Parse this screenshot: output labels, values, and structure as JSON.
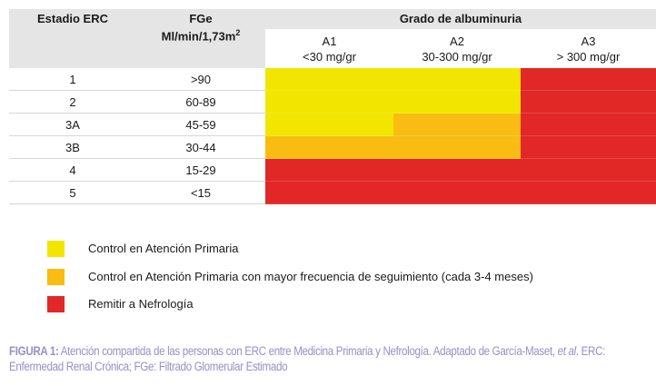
{
  "table": {
    "col_stage": "Estadio ERC",
    "col_fge": "FGe",
    "col_fge_unit": "Ml/min/1,73m",
    "col_fge_unit_sup": "2",
    "col_albuminuria": "Grado de albuminuria",
    "albuminuria_levels": [
      {
        "code": "A1",
        "range": "<30 mg/gr"
      },
      {
        "code": "A2",
        "range": "30-300 mg/gr"
      },
      {
        "code": "A3",
        "range": "> 300 mg/gr"
      }
    ],
    "rows": [
      {
        "stage": "1",
        "fge": ">90",
        "risk": [
          "yellow",
          "yellow",
          "red"
        ]
      },
      {
        "stage": "2",
        "fge": "60-89",
        "risk": [
          "yellow",
          "yellow",
          "red"
        ]
      },
      {
        "stage": "3A",
        "fge": "45-59",
        "risk": [
          "yellow",
          "orange",
          "red"
        ]
      },
      {
        "stage": "3B",
        "fge": "30-44",
        "risk": [
          "orange",
          "orange",
          "red"
        ]
      },
      {
        "stage": "4",
        "fge": "15-29",
        "risk": [
          "red",
          "red",
          "red"
        ]
      },
      {
        "stage": "5",
        "fge": "<15",
        "risk": [
          "red",
          "red",
          "red"
        ]
      }
    ]
  },
  "colors": {
    "yellow": "#f2e600",
    "orange": "#f8bc12",
    "red": "#e12826",
    "caption": "#9a8fc6"
  },
  "legend": [
    {
      "color": "yellow",
      "label": "Control en Atención Primaria"
    },
    {
      "color": "orange",
      "label": "Control en Atención Primaria con mayor frecuencia de seguimiento (cada 3-4 meses)"
    },
    {
      "color": "red",
      "label": "Remitir a Nefrología"
    }
  ],
  "caption": {
    "label": "FIGURA 1:",
    "text": " Atención compartida de las personas con ERC entre Medicina Primaria y Nefrología. Adaptado de García-Maset, ",
    "italic": "et al",
    "text2": ". ERC: Enfermedad Renal Crónica; FGe: Filtrado Glomerular Estimado"
  }
}
